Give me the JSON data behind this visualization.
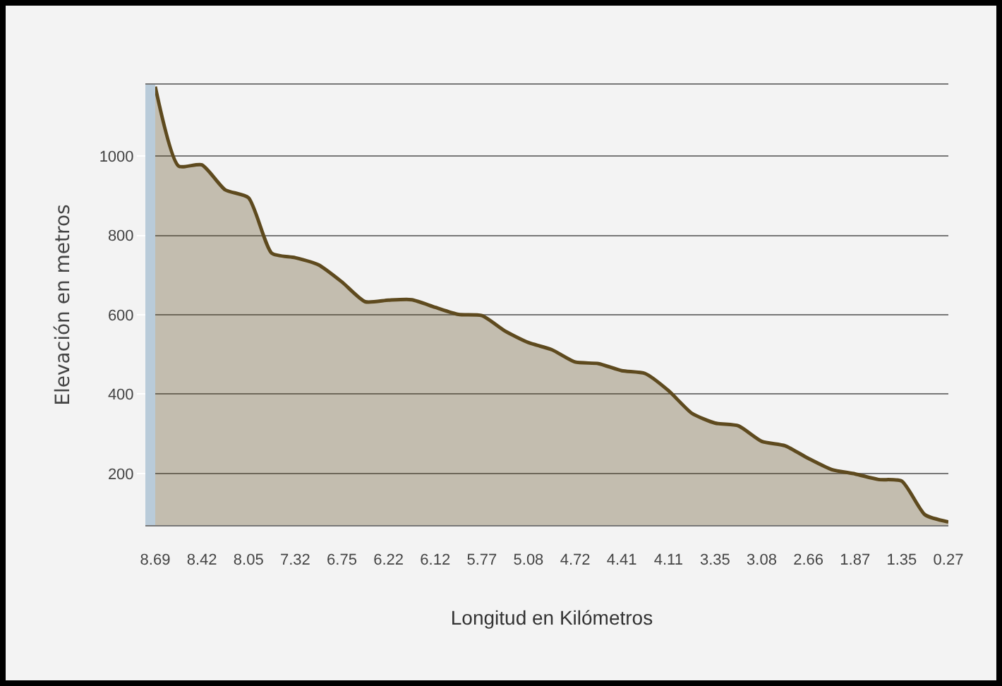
{
  "chart_data": {
    "type": "area",
    "xlabel": "Longitud en Kilómetros",
    "ylabel": "Elevación en metros",
    "categories": [
      "8.69",
      null,
      "8.42",
      null,
      "8.05",
      null,
      "7.32",
      null,
      "6.75",
      null,
      "6.22",
      null,
      "6.12",
      null,
      "5.77",
      null,
      "5.08",
      null,
      "4.72",
      null,
      "4.41",
      null,
      "4.11",
      null,
      "3.35",
      null,
      "3.08",
      null,
      "2.66",
      null,
      "1.87",
      null,
      "1.35",
      null,
      "0.27"
    ],
    "series": [
      {
        "color": "#5e4a1e",
        "values": [
          1175,
          975,
          978,
          915,
          895,
          755,
          744,
          726,
          683,
          633,
          637,
          638,
          619,
          601,
          598,
          559,
          530,
          512,
          481,
          477,
          459,
          452,
          409,
          352,
          327,
          320,
          281,
          270,
          238,
          210,
          199,
          185,
          181,
          96,
          78
        ]
      }
    ],
    "ylim": [
      70,
      1180
    ],
    "yticks": [
      200,
      400,
      600,
      800,
      1000
    ],
    "grid": "y"
  }
}
